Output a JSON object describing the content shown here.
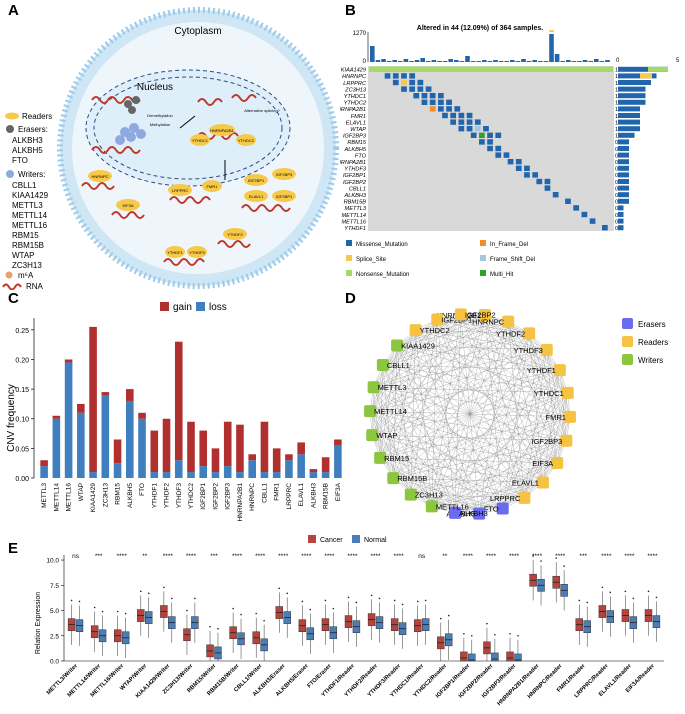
{
  "panels": {
    "a": "A",
    "b": "B",
    "c": "C",
    "d": "D",
    "e": "E"
  },
  "panel_a": {
    "cytoplasm": "Cytoplasm",
    "nucleus": "Nucleus",
    "legend": {
      "readers": "Readers",
      "erasers_title": "Erasers:",
      "erasers": [
        "ALKBH3",
        "ALKBH5",
        "FTO"
      ],
      "writers_title": "Writers:",
      "writers": [
        "CBLL1",
        "KIAA1429",
        "METTL3",
        "METTL14",
        "METTL16",
        "RBM15",
        "RBM15B",
        "WTAP",
        "ZC3H13"
      ],
      "m6a": "m⁶A",
      "rna": "RNA"
    },
    "labels": {
      "methylation": "Methylation",
      "demethylation": "Demethylation",
      "splicing": "Alternative splicing?",
      "hnrnpa2b1": "HNRNPA2B1",
      "ythdc1": "YTHDC1",
      "ythdc2": "YTHDC2",
      "hnrnpc": "HNRNPC",
      "eif3a": "EIF3A",
      "lrpprc": "LRPPRC",
      "fmr1": "FMR1",
      "elavl1": "ELAVL1",
      "igf2bp1": "IGF2BP1",
      "igf2bp3": "IGF2BP3",
      "ythdf2": "YTHDF2",
      "ythdf1": "YTHDF1",
      "ythdf3": "YTHDF3"
    }
  },
  "panel_b": {
    "title": "Altered in 44 (12.09%) of 364 samples.",
    "top_max": "1270",
    "top_min": "0",
    "right_axis": [
      "0",
      "5"
    ],
    "genes": [
      "KIAA1429",
      "HNRNPC",
      "LRPPRC",
      "ZC3H13",
      "YTHDC1",
      "YTHDC2",
      "HNRNPA2B1",
      "FMR1",
      "ELAVL1",
      "WTAP",
      "IGF2BP3",
      "RBM15",
      "ALKBH5",
      "FTO",
      "HNRNPA2B1",
      "YTHDF3",
      "IGF2BP1",
      "IGF2BP2",
      "CBLL1",
      "ALKBH3",
      "RBM15B",
      "METTL3",
      "METTL14",
      "METTL16",
      "YTHDF1"
    ],
    "percents": [
      "1%",
      "1%",
      "1%",
      "1%",
      "1%",
      "1%",
      "1%",
      "1%",
      "1%",
      "1%",
      "1%",
      "0%",
      "0%",
      "0%",
      "0%",
      "0%",
      "0%",
      "0%",
      "0%",
      "0%",
      "0%",
      "0%",
      "0%",
      "0%",
      "0%"
    ],
    "legend": [
      "Missense_Mutation",
      "In_Frame_Del",
      "Splice_Site",
      "Frame_Shift_Del",
      "Nonsense_Mutation",
      "Multi_Hit"
    ],
    "colors": {
      "missense": "#2166ac",
      "inframe": "#f28e2b",
      "splice": "#f6c94e",
      "frameshift": "#9ecae1",
      "nonsense": "#a6d96a",
      "multi": "#33a02c",
      "bg": "#d9d9d9"
    }
  },
  "panel_c": {
    "legend_gain": "gain",
    "legend_loss": "loss",
    "chart_data": {
      "type": "bar",
      "title": "",
      "xlabel": "",
      "ylabel": "CNV frequency",
      "ylim": [
        0,
        0.27
      ],
      "yticks": [
        "0.00",
        "0.05",
        "0.10",
        "0.15",
        "0.20",
        "0.25"
      ],
      "categories": [
        "METTL3",
        "METTL14",
        "METTL16",
        "WTAP",
        "KIAA1429",
        "ZC3H13",
        "RBM15",
        "ALKBH5",
        "FTO",
        "YTHDF1",
        "YTHDF2",
        "YTHDF3",
        "YTHDC2",
        "IGF2BP1",
        "IGF2BP2",
        "IGF2BP3",
        "HNRNPA2B1",
        "HNRNPC",
        "CBLL1",
        "FMR1",
        "LRPPRC",
        "ELAVL1",
        "ALKBH3",
        "RBM15B",
        "EIF3A"
      ],
      "series": [
        {
          "name": "loss",
          "color": "#3f7fbf",
          "values": [
            0.02,
            0.1,
            0.195,
            0.11,
            0.01,
            0.14,
            0.025,
            0.13,
            0.1,
            0.01,
            0.01,
            0.03,
            0.01,
            0.02,
            0.01,
            0.02,
            0.01,
            0.03,
            0.01,
            0.01,
            0.03,
            0.04,
            0.01,
            0.01,
            0.055
          ]
        },
        {
          "name": "gain",
          "color": "#b03030",
          "values": [
            0.01,
            0.005,
            0.005,
            0.015,
            0.245,
            0.005,
            0.04,
            0.02,
            0.01,
            0.07,
            0.09,
            0.2,
            0.085,
            0.06,
            0.04,
            0.075,
            0.08,
            0.01,
            0.085,
            0.04,
            0.01,
            0.02,
            0.005,
            0.025,
            0.01
          ]
        }
      ]
    }
  },
  "panel_d": {
    "legend": [
      {
        "label": "Erasers",
        "color": "#6b6bef"
      },
      {
        "label": "Readers",
        "color": "#f5c242"
      },
      {
        "label": "Writers",
        "color": "#8cc63f"
      }
    ],
    "nodes": [
      {
        "name": "HNRNPA2B1",
        "type": "Readers"
      },
      {
        "name": "HNRNPC",
        "type": "Readers"
      },
      {
        "name": "YTHDF2",
        "type": "Readers"
      },
      {
        "name": "YTHDF3",
        "type": "Readers"
      },
      {
        "name": "YTHDF1",
        "type": "Readers"
      },
      {
        "name": "YTHDC1",
        "type": "Readers"
      },
      {
        "name": "FMR1",
        "type": "Readers"
      },
      {
        "name": "IGF2BP3",
        "type": "Readers"
      },
      {
        "name": "EIF3A",
        "type": "Readers"
      },
      {
        "name": "ELAVL1",
        "type": "Readers"
      },
      {
        "name": "LRPPRC",
        "type": "Readers"
      },
      {
        "name": "FTO",
        "type": "Erasers"
      },
      {
        "name": "ALKBH5",
        "type": "Erasers"
      },
      {
        "name": "ALKBH3",
        "type": "Erasers"
      },
      {
        "name": "METTL16",
        "type": "Writers"
      },
      {
        "name": "ZC3H13",
        "type": "Writers"
      },
      {
        "name": "RBM15B",
        "type": "Writers"
      },
      {
        "name": "RBM15",
        "type": "Writers"
      },
      {
        "name": "WTAP",
        "type": "Writers"
      },
      {
        "name": "METTL14",
        "type": "Writers"
      },
      {
        "name": "METTL3",
        "type": "Writers"
      },
      {
        "name": "CBLL1",
        "type": "Writers"
      },
      {
        "name": "KIAA1429",
        "type": "Writers"
      },
      {
        "name": "YTHDC2",
        "type": "Readers"
      },
      {
        "name": "IGF2BP1",
        "type": "Readers"
      },
      {
        "name": "IGF2BP2",
        "type": "Readers"
      }
    ]
  },
  "panel_e": {
    "legend": [
      {
        "label": "Cancer",
        "color": "#b5443f"
      },
      {
        "label": "Normal",
        "color": "#4d7db5"
      }
    ],
    "ylabel": "Relation Expression",
    "yticks": [
      "0.0",
      "2.5",
      "5.0",
      "7.5",
      "10.0"
    ],
    "chart_data": {
      "type": "boxplot",
      "ylim": [
        0,
        10.5
      ],
      "categories": [
        "METTL3/Writer",
        "METTL14/Writer",
        "METTL16/Writer",
        "WTAP/Writer",
        "KIAA1429/Writer",
        "ZC3H13/Writer",
        "RBM15/Writer",
        "RBM15B/Writer",
        "CBLL1/Writer",
        "ALKBH3/Eraser",
        "ALKBH5/Eraser",
        "FTO/Eraser",
        "YTHDF1/Reader",
        "YTHDF2/Reader",
        "YTHDF3/Reader",
        "YTHDC1/Reader",
        "YTHDC2/Reader",
        "IGF2BP1/Reader",
        "IGF2BP2/Reader",
        "IGF2BP3/Reader",
        "HNRNPA2B1/Reader",
        "HNRNPC/Reader",
        "FMR1/Reader",
        "LRPPRC/Reader",
        "ELAVL1/Reader",
        "EIF3A/Reader"
      ],
      "significance": [
        "ns",
        "***",
        "****",
        "**",
        "****",
        "****",
        "***",
        "****",
        "****",
        "****",
        "****",
        "****",
        "****",
        "****",
        "****",
        "ns",
        "**",
        "****",
        "****",
        "****",
        "****",
        "****",
        "***",
        "****",
        "****",
        "****"
      ],
      "cancer_median": [
        3.6,
        2.9,
        2.5,
        4.5,
        4.9,
        2.6,
        1.0,
        2.8,
        2.3,
        4.8,
        3.5,
        3.6,
        3.9,
        4.1,
        3.6,
        3.5,
        1.8,
        0.3,
        1.3,
        0.3,
        8.0,
        7.8,
        3.6,
        4.9,
        4.5,
        4.5
      ],
      "normal_median": [
        3.5,
        2.5,
        2.3,
        4.3,
        3.8,
        3.8,
        0.8,
        2.2,
        1.6,
        4.3,
        2.7,
        2.8,
        3.4,
        3.8,
        3.2,
        3.6,
        2.1,
        0.1,
        0.2,
        0.1,
        7.5,
        7.0,
        3.4,
        4.4,
        3.8,
        3.9
      ]
    }
  }
}
